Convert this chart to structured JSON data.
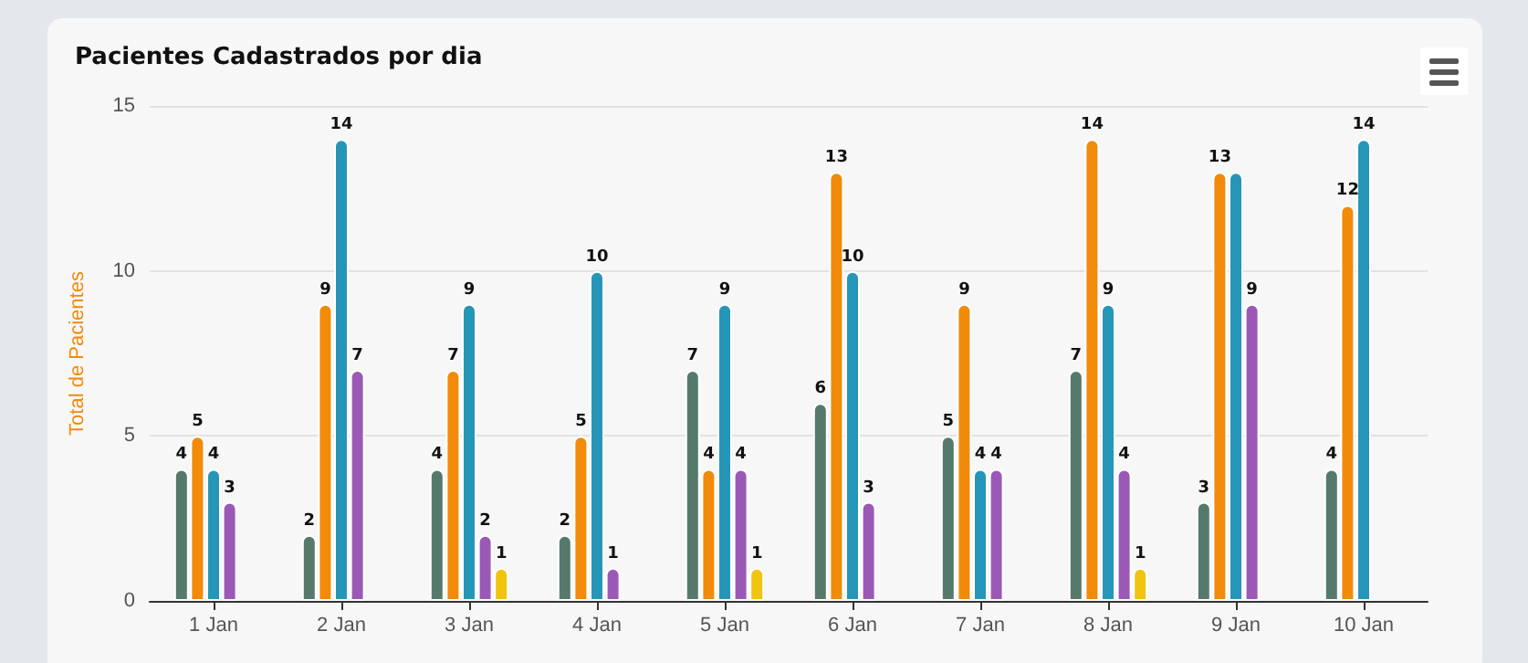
{
  "chart_data": {
    "type": "bar",
    "title": "Pacientes Cadastrados por dia",
    "ylabel": "Total de Pacientes",
    "categories": [
      "1 Jan",
      "2 Jan",
      "3 Jan",
      "4 Jan",
      "5 Jan",
      "6 Jan",
      "7 Jan",
      "8 Jan",
      "9 Jan",
      "10 Jan"
    ],
    "series": [
      {
        "color": "#557a6c",
        "values": [
          4,
          2,
          4,
          2,
          7,
          6,
          5,
          7,
          3,
          4
        ],
        "value_labels": [
          "4",
          "2",
          "4",
          "2",
          "7",
          "6",
          "5",
          "7",
          "3",
          "4"
        ]
      },
      {
        "color": "#f28a0a",
        "values": [
          5,
          9,
          7,
          5,
          4,
          13,
          9,
          14,
          13,
          12
        ],
        "value_labels": [
          "5",
          "9",
          "7",
          "5",
          "4",
          "13",
          "9",
          "14",
          "13",
          "12"
        ]
      },
      {
        "color": "#2596b8",
        "values": [
          4,
          14,
          9,
          10,
          9,
          10,
          4,
          9,
          13,
          14
        ],
        "value_labels": [
          "4",
          "14",
          "9",
          "10",
          "9",
          "10",
          "4",
          "9",
          null,
          "14"
        ]
      },
      {
        "color": "#9b59b6",
        "values": [
          3,
          7,
          2,
          1,
          4,
          3,
          4,
          4,
          9,
          null
        ],
        "value_labels": [
          "3",
          "7",
          "2",
          "1",
          "4",
          "3",
          "4",
          "4",
          "9",
          null
        ]
      },
      {
        "color": "#f1c40f",
        "values": [
          null,
          null,
          1,
          null,
          1,
          null,
          null,
          1,
          null,
          null
        ],
        "value_labels": [
          null,
          null,
          "1",
          null,
          "1",
          null,
          null,
          "1",
          null,
          null
        ]
      }
    ],
    "ylim": [
      0,
      15
    ],
    "yticks": [
      0,
      5,
      10,
      15
    ],
    "grid": "y"
  }
}
